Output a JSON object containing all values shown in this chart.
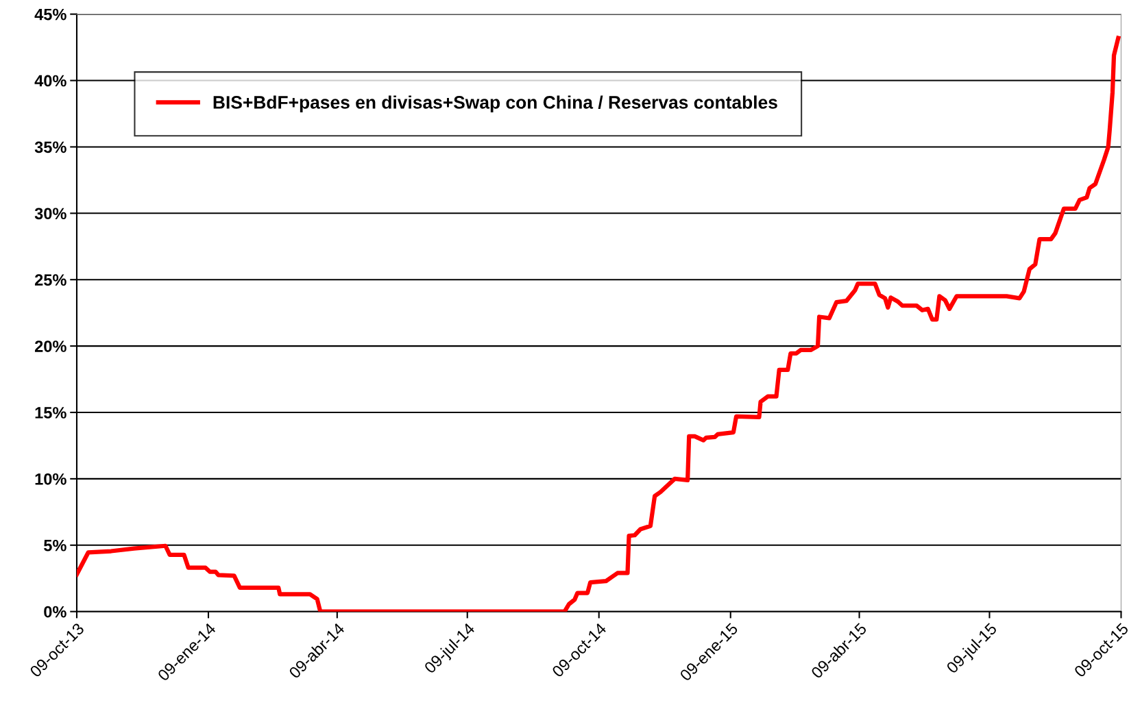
{
  "chart_data": {
    "type": "line",
    "legend": "top left",
    "grid": "y",
    "line_style": "solid",
    "marker": "none",
    "xlim": [
      "2013-10-09",
      "2015-10-09"
    ],
    "xticks": [
      {
        "value": "2013-10-09",
        "label": "09-oct-13"
      },
      {
        "value": "2014-01-09",
        "label": "09-ene-14"
      },
      {
        "value": "2014-04-09",
        "label": "09-abr-14"
      },
      {
        "value": "2014-07-09",
        "label": "09-jul-14"
      },
      {
        "value": "2014-10-09",
        "label": "09-oct-14"
      },
      {
        "value": "2015-01-09",
        "label": "09-ene-15"
      },
      {
        "value": "2015-04-09",
        "label": "09-abr-15"
      },
      {
        "value": "2015-07-09",
        "label": "09-jul-15"
      },
      {
        "value": "2015-10-09",
        "label": "09-oct-15"
      }
    ],
    "ylim": [
      0,
      45
    ],
    "yticks": [
      {
        "value": 0,
        "label": "0%"
      },
      {
        "value": 5,
        "label": "5%"
      },
      {
        "value": 10,
        "label": "10%"
      },
      {
        "value": 15,
        "label": "15%"
      },
      {
        "value": 20,
        "label": "20%"
      },
      {
        "value": 25,
        "label": "25%"
      },
      {
        "value": 30,
        "label": "30%"
      },
      {
        "value": 35,
        "label": "35%"
      },
      {
        "value": 40,
        "label": "40%"
      },
      {
        "value": 45,
        "label": "45%"
      }
    ],
    "series": [
      {
        "name": "BIS+BdF+pases en divisas+Swap con China / Reservas contables",
        "color": "#ff0000",
        "x": [
          "2013-10-09",
          "2013-10-17",
          "2013-11-02",
          "2013-11-18",
          "2013-12-10",
          "2013-12-13",
          "2013-12-23",
          "2013-12-26",
          "2014-01-07",
          "2014-01-10",
          "2014-01-14",
          "2014-01-16",
          "2014-01-27",
          "2014-01-31",
          "2014-02-27",
          "2014-02-28",
          "2014-03-21",
          "2014-03-26",
          "2014-03-28",
          "2014-03-29",
          "2014-09-15",
          "2014-09-18",
          "2014-09-22",
          "2014-09-24",
          "2014-10-01",
          "2014-10-03",
          "2014-10-14",
          "2014-10-18",
          "2014-10-22",
          "2014-10-29",
          "2014-10-30",
          "2014-11-03",
          "2014-11-07",
          "2014-11-14",
          "2014-11-17",
          "2014-11-21",
          "2014-12-01",
          "2014-12-10",
          "2014-12-11",
          "2014-12-15",
          "2014-12-21",
          "2014-12-23",
          "2014-12-29",
          "2014-12-31",
          "2015-01-11",
          "2015-01-13",
          "2015-01-29",
          "2015-01-30",
          "2015-02-04",
          "2015-02-10",
          "2015-02-12",
          "2015-02-18",
          "2015-02-20",
          "2015-02-24",
          "2015-02-27",
          "2015-03-06",
          "2015-03-11",
          "2015-03-12",
          "2015-03-19",
          "2015-03-24",
          "2015-03-31",
          "2015-04-06",
          "2015-04-08",
          "2015-04-20",
          "2015-04-23",
          "2015-04-27",
          "2015-04-29",
          "2015-05-01",
          "2015-05-06",
          "2015-05-09",
          "2015-05-19",
          "2015-05-23",
          "2015-05-27",
          "2015-05-30",
          "2015-06-02",
          "2015-06-04",
          "2015-06-08",
          "2015-06-11",
          "2015-06-16",
          "2015-07-21",
          "2015-07-30",
          "2015-08-02",
          "2015-08-06",
          "2015-08-10",
          "2015-08-13",
          "2015-08-21",
          "2015-08-24",
          "2015-08-30",
          "2015-09-07",
          "2015-09-10",
          "2015-09-15",
          "2015-09-17",
          "2015-09-21",
          "2015-09-27",
          "2015-09-30",
          "2015-10-01",
          "2015-10-03",
          "2015-10-04",
          "2015-10-07"
        ],
        "values": [
          2.8,
          4.45,
          4.55,
          4.75,
          4.95,
          4.27,
          4.27,
          3.3,
          3.3,
          3.0,
          3.0,
          2.75,
          2.7,
          1.8,
          1.8,
          1.3,
          1.3,
          0.95,
          0.1,
          0,
          0,
          0.55,
          0.9,
          1.4,
          1.4,
          2.2,
          2.3,
          2.6,
          2.9,
          2.9,
          5.7,
          5.75,
          6.2,
          6.45,
          8.7,
          9.0,
          10.0,
          9.9,
          13.2,
          13.2,
          12.9,
          13.1,
          13.15,
          13.35,
          13.5,
          14.7,
          14.65,
          15.8,
          16.2,
          16.2,
          18.2,
          18.2,
          19.45,
          19.45,
          19.7,
          19.7,
          20.0,
          22.2,
          22.1,
          23.3,
          23.4,
          24.2,
          24.7,
          24.7,
          23.85,
          23.6,
          22.9,
          23.65,
          23.35,
          23.05,
          23.05,
          22.7,
          22.8,
          22.0,
          22.0,
          23.75,
          23.45,
          22.8,
          23.75,
          23.75,
          23.6,
          24.1,
          25.8,
          26.15,
          28.05,
          28.05,
          28.5,
          30.35,
          30.35,
          31.0,
          31.2,
          31.9,
          32.2,
          34.0,
          35.0,
          36.25,
          39.1,
          41.9,
          43.2
        ]
      }
    ]
  }
}
